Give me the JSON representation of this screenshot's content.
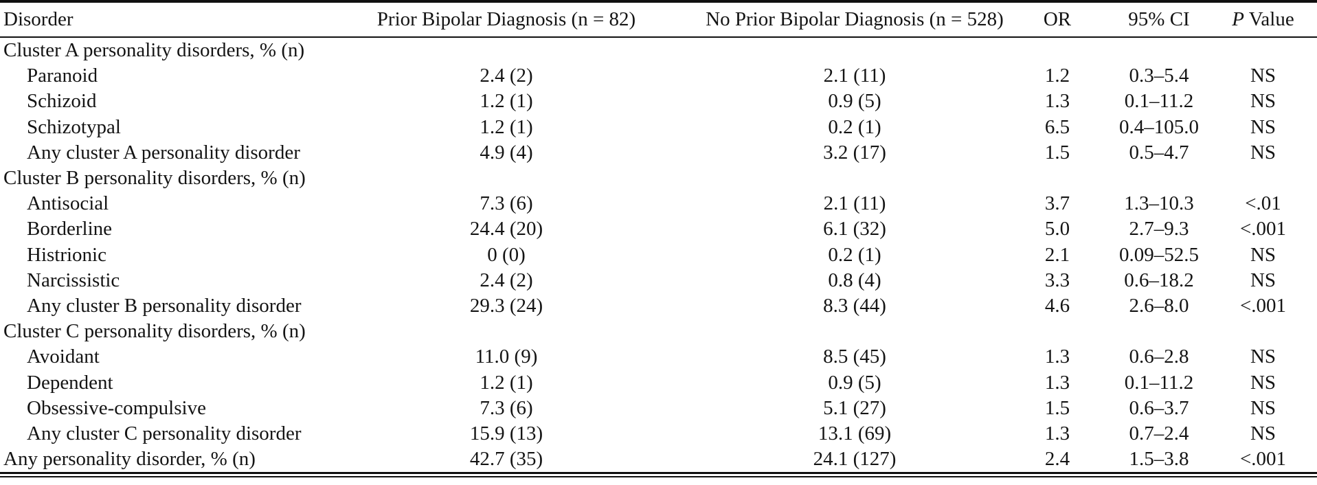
{
  "table": {
    "header": {
      "disorder": "Disorder",
      "prior": "Prior Bipolar Diagnosis (n = 82)",
      "no_prior": "No Prior Bipolar Diagnosis (n = 528)",
      "or": "OR",
      "ci": "95% CI",
      "p_italic": "P",
      "p_rest": " Value"
    },
    "rows": [
      {
        "label": "Cluster A personality disorders, % (n)",
        "indent": false,
        "prior": "",
        "no_prior": "",
        "or": "",
        "ci": "",
        "p": ""
      },
      {
        "label": "Paranoid",
        "indent": true,
        "prior": "2.4 (2)",
        "no_prior": "2.1 (11)",
        "or": "1.2",
        "ci": "0.3–5.4",
        "p": "NS"
      },
      {
        "label": "Schizoid",
        "indent": true,
        "prior": "1.2 (1)",
        "no_prior": "0.9 (5)",
        "or": "1.3",
        "ci": "0.1–11.2",
        "p": "NS"
      },
      {
        "label": "Schizotypal",
        "indent": true,
        "prior": "1.2 (1)",
        "no_prior": "0.2 (1)",
        "or": "6.5",
        "ci": "0.4–105.0",
        "p": "NS"
      },
      {
        "label": "Any cluster A personality disorder",
        "indent": true,
        "prior": "4.9 (4)",
        "no_prior": "3.2 (17)",
        "or": "1.5",
        "ci": "0.5–4.7",
        "p": "NS"
      },
      {
        "label": "Cluster B personality disorders, % (n)",
        "indent": false,
        "prior": "",
        "no_prior": "",
        "or": "",
        "ci": "",
        "p": ""
      },
      {
        "label": "Antisocial",
        "indent": true,
        "prior": "7.3 (6)",
        "no_prior": "2.1 (11)",
        "or": "3.7",
        "ci": "1.3–10.3",
        "p": "<.01"
      },
      {
        "label": "Borderline",
        "indent": true,
        "prior": "24.4 (20)",
        "no_prior": "6.1 (32)",
        "or": "5.0",
        "ci": "2.7–9.3",
        "p": "<.001"
      },
      {
        "label": "Histrionic",
        "indent": true,
        "prior": "0 (0)",
        "no_prior": "0.2 (1)",
        "or": "2.1",
        "ci": "0.09–52.5",
        "p": "NS"
      },
      {
        "label": "Narcissistic",
        "indent": true,
        "prior": "2.4 (2)",
        "no_prior": "0.8 (4)",
        "or": "3.3",
        "ci": "0.6–18.2",
        "p": "NS"
      },
      {
        "label": "Any cluster B personality disorder",
        "indent": true,
        "prior": "29.3 (24)",
        "no_prior": "8.3 (44)",
        "or": "4.6",
        "ci": "2.6–8.0",
        "p": "<.001"
      },
      {
        "label": "Cluster C personality disorders, % (n)",
        "indent": false,
        "prior": "",
        "no_prior": "",
        "or": "",
        "ci": "",
        "p": ""
      },
      {
        "label": "Avoidant",
        "indent": true,
        "prior": "11.0 (9)",
        "no_prior": "8.5 (45)",
        "or": "1.3",
        "ci": "0.6–2.8",
        "p": "NS"
      },
      {
        "label": "Dependent",
        "indent": true,
        "prior": "1.2 (1)",
        "no_prior": "0.9 (5)",
        "or": "1.3",
        "ci": "0.1–11.2",
        "p": "NS"
      },
      {
        "label": "Obsessive-compulsive",
        "indent": true,
        "prior": "7.3 (6)",
        "no_prior": "5.1 (27)",
        "or": "1.5",
        "ci": "0.6–3.7",
        "p": "NS"
      },
      {
        "label": "Any cluster C personality disorder",
        "indent": true,
        "prior": "15.9 (13)",
        "no_prior": "13.1 (69)",
        "or": "1.3",
        "ci": "0.7–2.4",
        "p": "NS"
      },
      {
        "label": "Any personality disorder, % (n)",
        "indent": false,
        "prior": "42.7 (35)",
        "no_prior": "24.1 (127)",
        "or": "2.4",
        "ci": "1.5–3.8",
        "p": "<.001"
      }
    ],
    "colors": {
      "text": "#141414",
      "rule": "#101010",
      "background": "#ffffff"
    }
  }
}
